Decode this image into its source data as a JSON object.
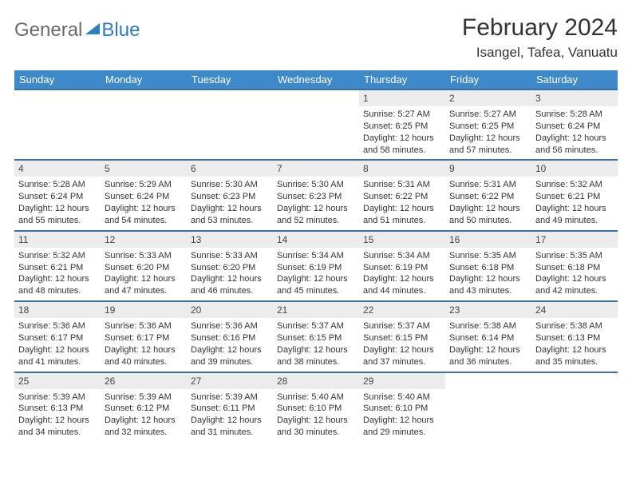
{
  "brand": {
    "part1": "General",
    "part2": "Blue"
  },
  "title": "February 2024",
  "location": "Isangel, Tafea, Vanuatu",
  "colors": {
    "header_bg": "#3d89c9",
    "header_text": "#ffffff",
    "row_divider": "#3d6fa3",
    "daynum_bg": "#ececec",
    "brand_gray": "#6b6b6b",
    "brand_blue": "#2d7dc4"
  },
  "weekdays": [
    "Sunday",
    "Monday",
    "Tuesday",
    "Wednesday",
    "Thursday",
    "Friday",
    "Saturday"
  ],
  "weeks": [
    [
      null,
      null,
      null,
      null,
      {
        "n": "1",
        "sr": "5:27 AM",
        "ss": "6:25 PM",
        "dl": "12 hours and 58 minutes."
      },
      {
        "n": "2",
        "sr": "5:27 AM",
        "ss": "6:25 PM",
        "dl": "12 hours and 57 minutes."
      },
      {
        "n": "3",
        "sr": "5:28 AM",
        "ss": "6:24 PM",
        "dl": "12 hours and 56 minutes."
      }
    ],
    [
      {
        "n": "4",
        "sr": "5:28 AM",
        "ss": "6:24 PM",
        "dl": "12 hours and 55 minutes."
      },
      {
        "n": "5",
        "sr": "5:29 AM",
        "ss": "6:24 PM",
        "dl": "12 hours and 54 minutes."
      },
      {
        "n": "6",
        "sr": "5:30 AM",
        "ss": "6:23 PM",
        "dl": "12 hours and 53 minutes."
      },
      {
        "n": "7",
        "sr": "5:30 AM",
        "ss": "6:23 PM",
        "dl": "12 hours and 52 minutes."
      },
      {
        "n": "8",
        "sr": "5:31 AM",
        "ss": "6:22 PM",
        "dl": "12 hours and 51 minutes."
      },
      {
        "n": "9",
        "sr": "5:31 AM",
        "ss": "6:22 PM",
        "dl": "12 hours and 50 minutes."
      },
      {
        "n": "10",
        "sr": "5:32 AM",
        "ss": "6:21 PM",
        "dl": "12 hours and 49 minutes."
      }
    ],
    [
      {
        "n": "11",
        "sr": "5:32 AM",
        "ss": "6:21 PM",
        "dl": "12 hours and 48 minutes."
      },
      {
        "n": "12",
        "sr": "5:33 AM",
        "ss": "6:20 PM",
        "dl": "12 hours and 47 minutes."
      },
      {
        "n": "13",
        "sr": "5:33 AM",
        "ss": "6:20 PM",
        "dl": "12 hours and 46 minutes."
      },
      {
        "n": "14",
        "sr": "5:34 AM",
        "ss": "6:19 PM",
        "dl": "12 hours and 45 minutes."
      },
      {
        "n": "15",
        "sr": "5:34 AM",
        "ss": "6:19 PM",
        "dl": "12 hours and 44 minutes."
      },
      {
        "n": "16",
        "sr": "5:35 AM",
        "ss": "6:18 PM",
        "dl": "12 hours and 43 minutes."
      },
      {
        "n": "17",
        "sr": "5:35 AM",
        "ss": "6:18 PM",
        "dl": "12 hours and 42 minutes."
      }
    ],
    [
      {
        "n": "18",
        "sr": "5:36 AM",
        "ss": "6:17 PM",
        "dl": "12 hours and 41 minutes."
      },
      {
        "n": "19",
        "sr": "5:36 AM",
        "ss": "6:17 PM",
        "dl": "12 hours and 40 minutes."
      },
      {
        "n": "20",
        "sr": "5:36 AM",
        "ss": "6:16 PM",
        "dl": "12 hours and 39 minutes."
      },
      {
        "n": "21",
        "sr": "5:37 AM",
        "ss": "6:15 PM",
        "dl": "12 hours and 38 minutes."
      },
      {
        "n": "22",
        "sr": "5:37 AM",
        "ss": "6:15 PM",
        "dl": "12 hours and 37 minutes."
      },
      {
        "n": "23",
        "sr": "5:38 AM",
        "ss": "6:14 PM",
        "dl": "12 hours and 36 minutes."
      },
      {
        "n": "24",
        "sr": "5:38 AM",
        "ss": "6:13 PM",
        "dl": "12 hours and 35 minutes."
      }
    ],
    [
      {
        "n": "25",
        "sr": "5:39 AM",
        "ss": "6:13 PM",
        "dl": "12 hours and 34 minutes."
      },
      {
        "n": "26",
        "sr": "5:39 AM",
        "ss": "6:12 PM",
        "dl": "12 hours and 32 minutes."
      },
      {
        "n": "27",
        "sr": "5:39 AM",
        "ss": "6:11 PM",
        "dl": "12 hours and 31 minutes."
      },
      {
        "n": "28",
        "sr": "5:40 AM",
        "ss": "6:10 PM",
        "dl": "12 hours and 30 minutes."
      },
      {
        "n": "29",
        "sr": "5:40 AM",
        "ss": "6:10 PM",
        "dl": "12 hours and 29 minutes."
      },
      null,
      null
    ]
  ],
  "labels": {
    "sunrise": "Sunrise: ",
    "sunset": "Sunset: ",
    "daylight": "Daylight: "
  }
}
